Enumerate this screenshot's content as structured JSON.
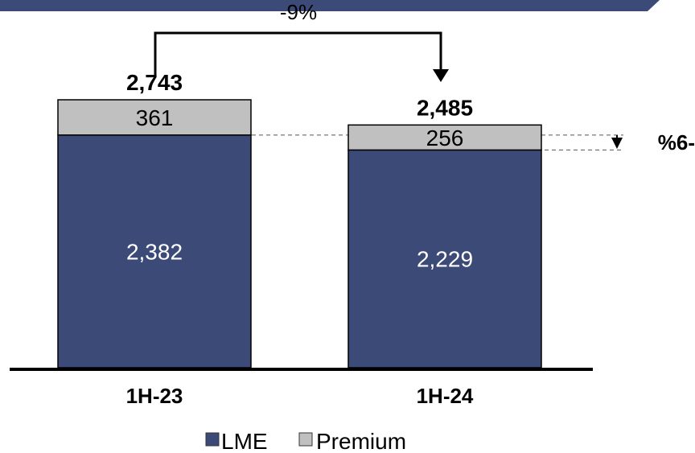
{
  "colors": {
    "lme": "#3c4a78",
    "premium": "#c0c0c0",
    "header_band": "#3c4a78",
    "axis": "#000000",
    "inner_text_dark": "#ffffff",
    "inner_text_light": "#000000"
  },
  "chart_data": {
    "type": "bar",
    "stacked": true,
    "categories": [
      "1H-23",
      "1H-24"
    ],
    "series": [
      {
        "name": "LME",
        "values": [
          2382,
          2229
        ],
        "labels": [
          "2,382",
          "2,229"
        ],
        "color": "#3c4a78"
      },
      {
        "name": "Premium",
        "values": [
          361,
          256
        ],
        "labels": [
          "361",
          "256"
        ],
        "color": "#c0c0c0"
      }
    ],
    "totals": [
      2743,
      2485
    ],
    "total_labels": [
      "2,743",
      "2,485"
    ],
    "annotations": {
      "total_change": "-9%",
      "lme_change": "%6-"
    },
    "legend": {
      "position": "bottom",
      "items": [
        "LME",
        "Premium"
      ]
    },
    "ylim": [
      0,
      2743
    ],
    "grid": false
  }
}
